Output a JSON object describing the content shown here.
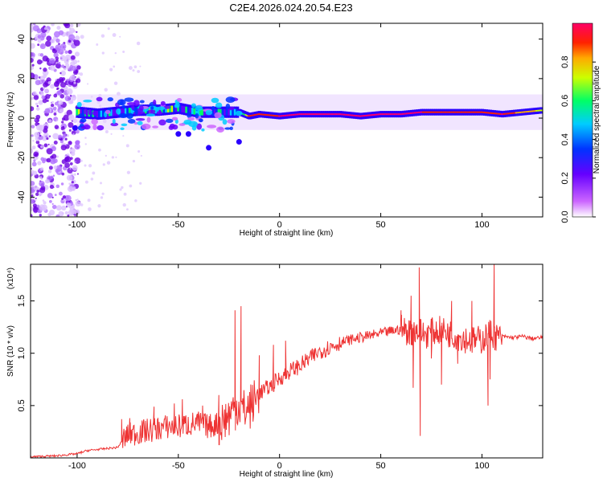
{
  "title": "C2E4.2026.024.20.54.E23",
  "chart_data": [
    {
      "type": "heatmap",
      "xlabel": "Height of straight line (km)",
      "ylabel": "Frequency (Hz)",
      "xlim": [
        -123,
        130
      ],
      "ylim": [
        -50,
        48
      ],
      "xticks": [
        -100,
        -50,
        0,
        50,
        100
      ],
      "yticks": [
        -40,
        -20,
        0,
        20,
        40
      ],
      "colorbar": {
        "label": "Normalized spectral amplitude",
        "range": [
          0,
          1
        ],
        "ticks": [
          "0.0",
          "0.2",
          "0.4",
          "0.6",
          "0.8"
        ],
        "tick_values": [
          0.0,
          0.2,
          0.4,
          0.6,
          0.8
        ],
        "colormap": [
          "#ffffff",
          "#9900ff",
          "#0000ff",
          "#00ffff",
          "#00ff00",
          "#ffff00",
          "#ff0000",
          "#ff0066"
        ]
      },
      "ridge": {
        "x": [
          -100,
          -90,
          -80,
          -70,
          -60,
          -50,
          -40,
          -30,
          -20,
          -15,
          -10,
          0,
          10,
          20,
          30,
          40,
          50,
          60,
          70,
          80,
          90,
          100,
          110,
          120,
          130
        ],
        "frequency": [
          3,
          2,
          3,
          4,
          4,
          5,
          3,
          3,
          3,
          1,
          2,
          1,
          2,
          2,
          2,
          1,
          2,
          2,
          3,
          3,
          3,
          3,
          2,
          3,
          4
        ],
        "amplitude": [
          0.5,
          0.45,
          0.5,
          0.5,
          0.5,
          0.5,
          0.5,
          0.45,
          0.4,
          0.9,
          0.95,
          1.0,
          1.0,
          1.0,
          1.0,
          1.0,
          1.0,
          1.0,
          1.0,
          0.95,
          0.9,
          0.95,
          1.0,
          0.85,
          0.8
        ]
      }
    },
    {
      "type": "line",
      "xlabel": "Height of straight line (km)",
      "ylabel": "SNR (10 * v/v)",
      "y_multiplier": "(x10⁴)",
      "xlim": [
        -123,
        130
      ],
      "ylim": [
        0,
        1.85
      ],
      "xticks": [
        -100,
        -50,
        0,
        50,
        100
      ],
      "yticks": [
        "0.5",
        "1.0",
        "1.5"
      ],
      "ytick_values": [
        0.5,
        1.0,
        1.5
      ],
      "color": "#ee3333",
      "series": [
        {
          "x": [
            -123,
            -110,
            -100,
            -95,
            -90,
            -85,
            -80,
            -77,
            -75,
            -70,
            -65,
            -60,
            -55,
            -50,
            -45,
            -40,
            -35,
            -30,
            -25,
            -22,
            -20,
            -18,
            -15,
            -12,
            -10,
            -5,
            0,
            5,
            10,
            15,
            20,
            25,
            30,
            35,
            40,
            45,
            50,
            55,
            60,
            65,
            68,
            70,
            72,
            75,
            80,
            85,
            90,
            95,
            100,
            103,
            105,
            107,
            110,
            115,
            120,
            125,
            130
          ],
          "y": [
            0.01,
            0.02,
            0.04,
            0.07,
            0.08,
            0.09,
            0.1,
            0.18,
            0.22,
            0.24,
            0.26,
            0.28,
            0.3,
            0.3,
            0.32,
            0.33,
            0.3,
            0.33,
            0.4,
            0.48,
            0.5,
            0.45,
            0.48,
            0.55,
            0.62,
            0.68,
            0.76,
            0.83,
            0.88,
            0.95,
            1.02,
            1.06,
            1.1,
            1.13,
            1.15,
            1.17,
            1.19,
            1.21,
            1.23,
            1.2,
            1.22,
            1.2,
            1.18,
            1.2,
            1.22,
            1.18,
            1.15,
            1.12,
            1.13,
            1.18,
            1.2,
            1.15,
            1.16,
            1.15,
            1.16,
            1.14,
            1.15
          ],
          "spikes": [
            {
              "x": -78,
              "y": 0.37
            },
            {
              "x": -74,
              "y": 0.38
            },
            {
              "x": -62,
              "y": 0.49
            },
            {
              "x": -52,
              "y": 0.52
            },
            {
              "x": -48,
              "y": 0.56
            },
            {
              "x": -38,
              "y": 0.5
            },
            {
              "x": -30,
              "y": 0.6
            },
            {
              "x": -22,
              "y": 1.41
            },
            {
              "x": -19,
              "y": 1.45
            },
            {
              "x": -10,
              "y": 0.98
            },
            {
              "x": -3,
              "y": 1.08
            },
            {
              "x": 3,
              "y": 1.12
            },
            {
              "x": 60,
              "y": 1.41
            },
            {
              "x": 65,
              "y": 1.55
            },
            {
              "x": 69,
              "y": 1.82
            },
            {
              "x": 69.5,
              "y": 0.21
            },
            {
              "x": 66,
              "y": 0.67
            },
            {
              "x": 75,
              "y": 0.95
            },
            {
              "x": 80,
              "y": 0.7
            },
            {
              "x": 85,
              "y": 1.5
            },
            {
              "x": 88,
              "y": 0.9
            },
            {
              "x": 95,
              "y": 1.5
            },
            {
              "x": 103,
              "y": 0.5
            },
            {
              "x": 106,
              "y": 1.85
            },
            {
              "x": 104,
              "y": 0.75
            }
          ]
        }
      ]
    }
  ]
}
